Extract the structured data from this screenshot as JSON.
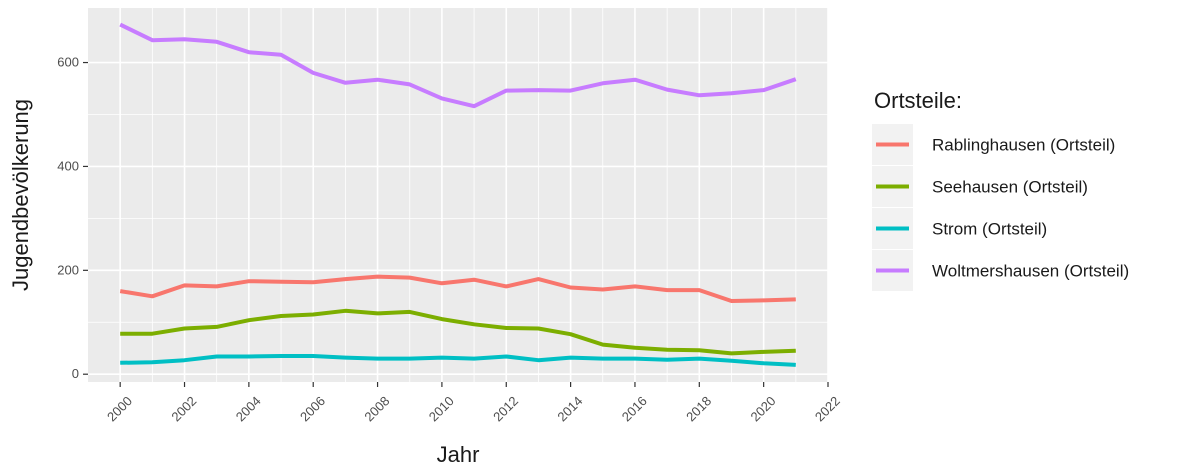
{
  "chart_data": {
    "type": "line",
    "xlabel": "Jahr",
    "ylabel": "Jugendbevölkerung",
    "xlim": [
      1999,
      2022
    ],
    "ylim": [
      -15,
      705
    ],
    "x_ticks": [
      2000,
      2002,
      2004,
      2006,
      2008,
      2010,
      2012,
      2014,
      2016,
      2018,
      2020,
      2022
    ],
    "y_ticks": [
      0,
      200,
      400,
      600
    ],
    "grid": true,
    "legend": {
      "title": "Ortsteile:",
      "position": "right"
    },
    "x": [
      2000,
      2001,
      2002,
      2003,
      2004,
      2005,
      2006,
      2007,
      2008,
      2009,
      2010,
      2011,
      2012,
      2013,
      2014,
      2015,
      2016,
      2017,
      2018,
      2019,
      2020,
      2021
    ],
    "series": [
      {
        "name": "Rablinghausen (Ortsteil)",
        "color": "#F8766D",
        "values": [
          160,
          150,
          171,
          169,
          179,
          178,
          177,
          183,
          188,
          186,
          175,
          182,
          169,
          183,
          167,
          163,
          169,
          162,
          162,
          141,
          142,
          144
        ]
      },
      {
        "name": "Seehausen (Ortsteil)",
        "color": "#7CAE00",
        "values": [
          78,
          78,
          88,
          91,
          104,
          112,
          115,
          122,
          117,
          120,
          106,
          96,
          89,
          88,
          77,
          57,
          51,
          47,
          46,
          40,
          43,
          45
        ]
      },
      {
        "name": "Strom (Ortsteil)",
        "color": "#00BFC4",
        "values": [
          22,
          23,
          27,
          34,
          34,
          35,
          35,
          32,
          30,
          30,
          32,
          30,
          34,
          27,
          32,
          30,
          30,
          28,
          30,
          26,
          21,
          18
        ]
      },
      {
        "name": "Woltmershausen (Ortsteil)",
        "color": "#C77CFF",
        "values": [
          673,
          643,
          645,
          640,
          620,
          615,
          580,
          561,
          567,
          558,
          531,
          516,
          546,
          547,
          546,
          560,
          567,
          548,
          537,
          541,
          547,
          568
        ]
      }
    ]
  }
}
